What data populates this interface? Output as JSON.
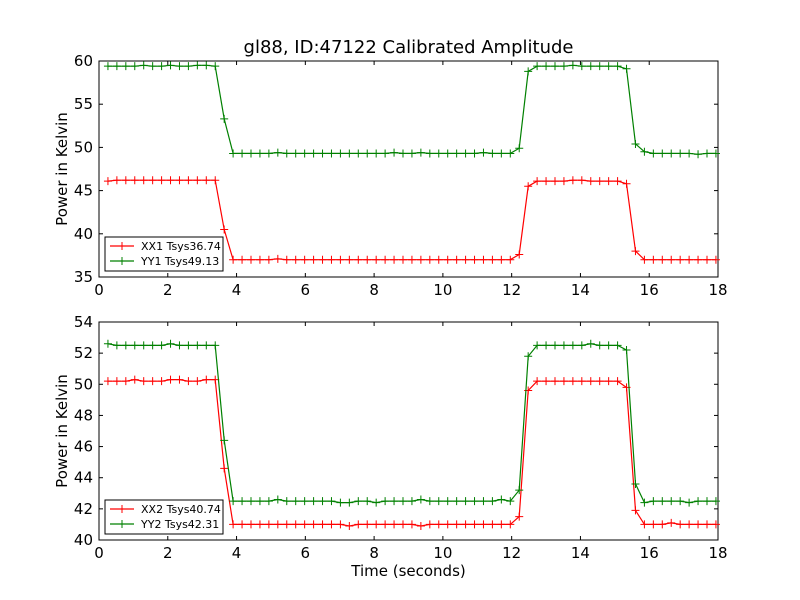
{
  "chart_data": [
    {
      "type": "line",
      "title": "gl88, ID:47122 Calibrated Amplitude",
      "xlabel": "",
      "ylabel": "Power in Kelvin",
      "xlim": [
        0,
        18
      ],
      "ylim": [
        35,
        60
      ],
      "xticks": [
        "0",
        "2",
        "4",
        "6",
        "8",
        "10",
        "12",
        "14",
        "16",
        "18"
      ],
      "yticks": [
        "35",
        "40",
        "45",
        "50",
        "55",
        "60"
      ],
      "grid": false,
      "legend_position": "lower-left",
      "x": [
        0.26,
        0.52,
        0.78,
        1.04,
        1.3,
        1.56,
        1.82,
        2.08,
        2.34,
        2.6,
        2.86,
        3.12,
        3.38,
        3.64,
        3.9,
        4.16,
        4.42,
        4.68,
        4.94,
        5.2,
        5.46,
        5.72,
        5.98,
        6.24,
        6.5,
        6.76,
        7.02,
        7.28,
        7.54,
        7.8,
        8.06,
        8.32,
        8.58,
        8.84,
        9.1,
        9.36,
        9.62,
        9.88,
        10.14,
        10.4,
        10.66,
        10.92,
        11.18,
        11.44,
        11.7,
        11.96,
        12.22,
        12.48,
        12.74,
        13.0,
        13.26,
        13.52,
        13.78,
        14.04,
        14.3,
        14.56,
        14.82,
        15.08,
        15.34,
        15.6,
        15.86,
        16.12,
        16.38,
        16.64,
        16.9,
        17.16,
        17.42,
        17.68,
        17.94
      ],
      "series": [
        {
          "name": "XX1 Tsys36.74",
          "color": "#ff0000",
          "values": [
            46.1,
            46.2,
            46.2,
            46.2,
            46.2,
            46.2,
            46.2,
            46.2,
            46.2,
            46.2,
            46.2,
            46.2,
            46.2,
            40.5,
            37.0,
            37.0,
            37.0,
            37.0,
            37.0,
            37.1,
            37.0,
            37.0,
            37.0,
            37.0,
            37.0,
            37.0,
            37.0,
            37.0,
            37.0,
            37.0,
            37.0,
            37.0,
            37.0,
            37.0,
            37.0,
            37.0,
            37.0,
            37.0,
            37.0,
            37.0,
            37.0,
            37.0,
            37.0,
            37.0,
            37.0,
            37.0,
            37.6,
            45.5,
            46.1,
            46.1,
            46.1,
            46.1,
            46.2,
            46.2,
            46.1,
            46.1,
            46.1,
            46.1,
            45.8,
            38.0,
            37.0,
            37.0,
            37.0,
            37.0,
            37.0,
            37.0,
            37.0,
            37.0,
            37.0
          ]
        },
        {
          "name": "YY1 Tsys49.13",
          "color": "#008000",
          "values": [
            59.4,
            59.4,
            59.4,
            59.4,
            59.5,
            59.4,
            59.4,
            59.5,
            59.4,
            59.4,
            59.5,
            59.5,
            59.4,
            53.3,
            49.3,
            49.3,
            49.3,
            49.3,
            49.3,
            49.4,
            49.3,
            49.3,
            49.3,
            49.3,
            49.3,
            49.3,
            49.3,
            49.3,
            49.3,
            49.3,
            49.3,
            49.3,
            49.4,
            49.3,
            49.3,
            49.4,
            49.3,
            49.3,
            49.3,
            49.3,
            49.3,
            49.3,
            49.4,
            49.3,
            49.3,
            49.3,
            49.9,
            58.8,
            59.4,
            59.4,
            59.4,
            59.4,
            59.5,
            59.4,
            59.4,
            59.4,
            59.4,
            59.4,
            59.1,
            50.4,
            49.5,
            49.3,
            49.3,
            49.3,
            49.3,
            49.3,
            49.2,
            49.3,
            49.3
          ]
        }
      ]
    },
    {
      "type": "line",
      "title": "",
      "xlabel": "Time (seconds)",
      "ylabel": "Power in Kelvin",
      "xlim": [
        0,
        18
      ],
      "ylim": [
        40,
        54
      ],
      "xticks": [
        "0",
        "2",
        "4",
        "6",
        "8",
        "10",
        "12",
        "14",
        "16",
        "18"
      ],
      "yticks": [
        "40",
        "42",
        "44",
        "46",
        "48",
        "50",
        "52",
        "54"
      ],
      "grid": false,
      "legend_position": "lower-left",
      "x": [
        0.26,
        0.52,
        0.78,
        1.04,
        1.3,
        1.56,
        1.82,
        2.08,
        2.34,
        2.6,
        2.86,
        3.12,
        3.38,
        3.64,
        3.9,
        4.16,
        4.42,
        4.68,
        4.94,
        5.2,
        5.46,
        5.72,
        5.98,
        6.24,
        6.5,
        6.76,
        7.02,
        7.28,
        7.54,
        7.8,
        8.06,
        8.32,
        8.58,
        8.84,
        9.1,
        9.36,
        9.62,
        9.88,
        10.14,
        10.4,
        10.66,
        10.92,
        11.18,
        11.44,
        11.7,
        11.96,
        12.22,
        12.48,
        12.74,
        13.0,
        13.26,
        13.52,
        13.78,
        14.04,
        14.3,
        14.56,
        14.82,
        15.08,
        15.34,
        15.6,
        15.86,
        16.12,
        16.38,
        16.64,
        16.9,
        17.16,
        17.42,
        17.68,
        17.94
      ],
      "series": [
        {
          "name": "XX2 Tsys40.74",
          "color": "#ff0000",
          "values": [
            50.2,
            50.2,
            50.2,
            50.3,
            50.2,
            50.2,
            50.2,
            50.3,
            50.3,
            50.2,
            50.2,
            50.3,
            50.3,
            44.6,
            41.0,
            41.0,
            41.0,
            41.0,
            41.0,
            41.0,
            41.0,
            41.0,
            41.0,
            41.0,
            41.0,
            41.0,
            41.0,
            40.9,
            41.0,
            41.0,
            41.0,
            41.0,
            41.0,
            41.0,
            41.0,
            40.9,
            41.0,
            41.0,
            41.0,
            41.0,
            41.0,
            41.0,
            41.0,
            41.0,
            41.0,
            41.0,
            41.5,
            49.6,
            50.2,
            50.2,
            50.2,
            50.2,
            50.2,
            50.2,
            50.2,
            50.2,
            50.2,
            50.2,
            49.8,
            41.9,
            41.0,
            41.0,
            41.0,
            41.1,
            41.0,
            41.0,
            41.0,
            41.0,
            41.0
          ]
        },
        {
          "name": "YY2 Tsys42.31",
          "color": "#008000",
          "values": [
            52.6,
            52.5,
            52.5,
            52.5,
            52.5,
            52.5,
            52.5,
            52.6,
            52.5,
            52.5,
            52.5,
            52.5,
            52.5,
            46.4,
            42.5,
            42.5,
            42.5,
            42.5,
            42.5,
            42.6,
            42.5,
            42.5,
            42.5,
            42.5,
            42.5,
            42.5,
            42.4,
            42.4,
            42.5,
            42.5,
            42.4,
            42.5,
            42.5,
            42.5,
            42.5,
            42.6,
            42.5,
            42.5,
            42.5,
            42.5,
            42.5,
            42.5,
            42.5,
            42.5,
            42.6,
            42.5,
            43.2,
            51.8,
            52.5,
            52.5,
            52.5,
            52.5,
            52.5,
            52.5,
            52.6,
            52.5,
            52.5,
            52.5,
            52.2,
            43.6,
            42.4,
            42.5,
            42.5,
            42.5,
            42.5,
            42.4,
            42.5,
            42.5,
            42.5
          ]
        }
      ]
    }
  ]
}
